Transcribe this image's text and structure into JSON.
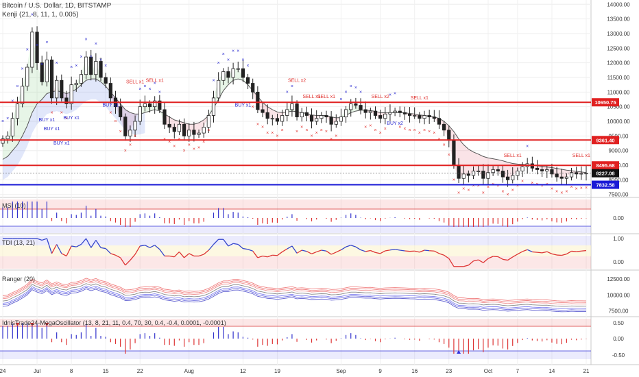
{
  "header": {
    "symbol": "Bitcoin / U.S. Dollar, 1D, BITSTAMP",
    "study": "Kenji (21, 8, 11, 1, 0.005)"
  },
  "panes": {
    "msi": {
      "title": "MSI (10)",
      "ticks": [
        "0.00"
      ]
    },
    "tdi": {
      "title": "TDI (13, 21)",
      "ticks": [
        "1.00",
        "0.00"
      ]
    },
    "ranger": {
      "title": "Ranger (20)",
      "ticks": [
        "12500.00",
        "10000.00",
        "7500.00"
      ]
    },
    "mega": {
      "title": "IdnisTrade24-MegaOscillator (13, 8, 21, 11, 0.4, 70, 30, 0.4, -0.4, 0.0001, -0.0001)",
      "ticks": [
        "0.50",
        "0.00",
        "-0.50"
      ]
    }
  },
  "price_axis": {
    "ticks": [
      "14000.00",
      "13500.00",
      "13000.00",
      "12500.00",
      "12000.00",
      "11500.00",
      "11000.00",
      "10500.00",
      "10000.00",
      "9500.00",
      "9000.00",
      "8500.00",
      "8000.00",
      "7500.00"
    ]
  },
  "badges": [
    {
      "label": "10650.75",
      "value": 10650.75,
      "color": "#e02020"
    },
    {
      "label": "9361.40",
      "value": 9361.4,
      "color": "#e02020"
    },
    {
      "label": "8495.68",
      "value": 8495.68,
      "color": "#e02020"
    },
    {
      "label": "8227.08",
      "value": 8227.08,
      "color": "#111111"
    },
    {
      "label": "7832.58",
      "value": 7832.58,
      "color": "#1a1ad6"
    }
  ],
  "x_axis": {
    "labels": [
      {
        "text": "24",
        "day": 0
      },
      {
        "text": "Jul",
        "day": 7
      },
      {
        "text": "8",
        "day": 14
      },
      {
        "text": "15",
        "day": 21
      },
      {
        "text": "22",
        "day": 28
      },
      {
        "text": "Aug",
        "day": 38
      },
      {
        "text": "12",
        "day": 49
      },
      {
        "text": "19",
        "day": 56
      },
      {
        "text": "Sep",
        "day": 69
      },
      {
        "text": "9",
        "day": 77
      },
      {
        "text": "16",
        "day": 84
      },
      {
        "text": "23",
        "day": 91
      },
      {
        "text": "Oct",
        "day": 99
      },
      {
        "text": "7",
        "day": 105
      },
      {
        "text": "14",
        "day": 112
      },
      {
        "text": "21",
        "day": 119
      }
    ]
  },
  "annotations": {
    "buy": [
      {
        "text": "BUY x1",
        "day": 9,
        "price": 10000
      },
      {
        "text": "BUY x1",
        "day": 10,
        "price": 9700
      },
      {
        "text": "BUY x1",
        "day": 12,
        "price": 9200
      },
      {
        "text": "BUY x1",
        "day": 14,
        "price": 10070
      },
      {
        "text": "BUY x1",
        "day": 22,
        "price": 10500
      },
      {
        "text": "BUY x1",
        "day": 49,
        "price": 10500
      },
      {
        "text": "BUY x2",
        "day": 80,
        "price": 9880
      }
    ],
    "sell": [
      {
        "text": "SELL x1",
        "day": 27,
        "price": 11300
      },
      {
        "text": "SELL x1",
        "day": 31,
        "price": 11350
      },
      {
        "text": "SELL x2",
        "day": 60,
        "price": 11350
      },
      {
        "text": "SELL x1",
        "day": 63,
        "price": 10800
      },
      {
        "text": "SELL x1",
        "day": 66,
        "price": 10800
      },
      {
        "text": "SELL x2",
        "day": 77,
        "price": 10800
      },
      {
        "text": "SELL x1",
        "day": 85,
        "price": 10750
      },
      {
        "text": "SELL x1",
        "day": 104,
        "price": 8780
      },
      {
        "text": "SELL x1",
        "day": 118,
        "price": 8780
      }
    ]
  },
  "chart_data": {
    "type": "candlestick",
    "title": "Bitcoin / U.S. Dollar, 1D, BITSTAMP",
    "ylim": [
      7400,
      14100
    ],
    "horizontal_levels": [
      {
        "value": 10650.75,
        "color": "#e02020"
      },
      {
        "value": 9361.4,
        "color": "#e02020"
      },
      {
        "value": 8495.68,
        "color": "#e02020"
      },
      {
        "value": 7832.58,
        "color": "#1a1ad6"
      }
    ],
    "close": [
      9400,
      9500,
      10100,
      10600,
      11200,
      11850,
      13050,
      12000,
      11350,
      12100,
      10800,
      11400,
      10800,
      10600,
      11250,
      11300,
      11600,
      12200,
      11600,
      12050,
      11500,
      11300,
      10800,
      10500,
      10150,
      9500,
      9700,
      10000,
      10500,
      10600,
      10500,
      10700,
      10400,
      9900,
      9800,
      9650,
      9900,
      9500,
      9700,
      9550,
      9600,
      9800,
      10200,
      10800,
      11400,
      11700,
      11500,
      11800,
      11800,
      11500,
      11300,
      11000,
      10400,
      10300,
      10100,
      10100,
      10000,
      10200,
      10400,
      10600,
      10150,
      10300,
      10200,
      10000,
      10100,
      10200,
      10150,
      9900,
      10000,
      10150,
      10400,
      10600,
      10550,
      10400,
      10300,
      10350,
      10200,
      10100,
      10250,
      10300,
      10350,
      10300,
      10250,
      10200,
      10200,
      10100,
      10200,
      10150,
      10100,
      9900,
      9700,
      9350,
      8500,
      8050,
      8200,
      8150,
      8300,
      8300,
      8050,
      8250,
      8350,
      8300,
      8100,
      8000,
      8150,
      8300,
      8450,
      8550,
      8400,
      8350,
      8300,
      8350,
      8200,
      8100,
      8050,
      8100,
      8250,
      8200,
      8220,
      8227
    ],
    "sma": [
      8700,
      8800,
      9000,
      9200,
      9500,
      9850,
      10300,
      10600,
      10750,
      10950,
      11000,
      11050,
      11000,
      10950,
      11000,
      11100,
      11250,
      11400,
      11450,
      11450,
      11350,
      11200,
      11000,
      10800,
      10600,
      10400,
      10300,
      10250,
      10250,
      10300,
      10350,
      10400,
      10350,
      10250,
      10150,
      10050,
      10000,
      9950,
      9900,
      9900,
      9950,
      10050,
      10200,
      10450,
      10750,
      11050,
      11250,
      11400,
      11450,
      11400,
      11250,
      11050,
      10850,
      10650,
      10500,
      10400,
      10320,
      10300,
      10320,
      10350,
      10330,
      10300,
      10270,
      10220,
      10200,
      10200,
      10200,
      10150,
      10120,
      10130,
      10200,
      10300,
      10350,
      10380,
      10380,
      10370,
      10340,
      10300,
      10290,
      10290,
      10300,
      10300,
      10290,
      10270,
      10250,
      10220,
      10200,
      10180,
      10150,
      10100,
      10000,
      9850,
      9650,
      9400,
      9200,
      9050,
      8950,
      8880,
      8800,
      8750,
      8720,
      8690,
      8650,
      8600,
      8560,
      8540,
      8530,
      8520,
      8500,
      8480,
      8460,
      8440,
      8420,
      8390,
      8360,
      8330,
      8310,
      8290,
      8270,
      8250
    ]
  }
}
